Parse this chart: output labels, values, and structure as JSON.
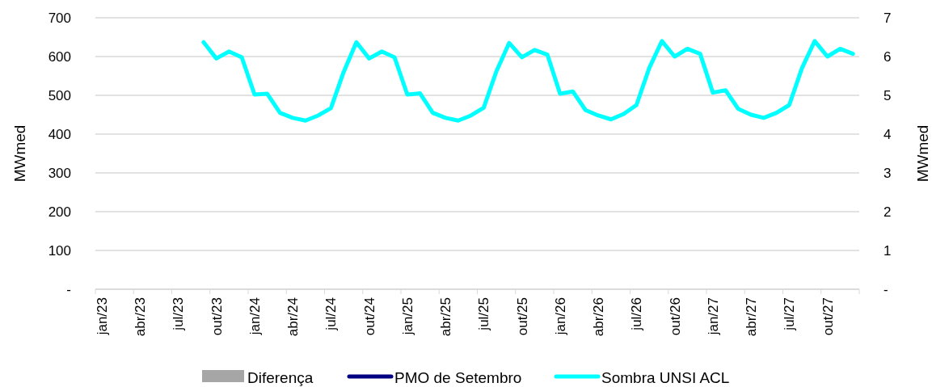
{
  "chart_data": {
    "type": "line",
    "xlabel": null,
    "ylabel": "MWmed",
    "y2label": "MWmed",
    "categories": [
      "jan/23",
      null,
      null,
      "abr/23",
      null,
      null,
      "jul/23",
      null,
      null,
      "out/23",
      null,
      null,
      "jan/24",
      null,
      null,
      "abr/24",
      null,
      null,
      "jul/24",
      null,
      null,
      "out/24",
      null,
      null,
      "jan/25",
      null,
      null,
      "abr/25",
      null,
      null,
      "jul/25",
      null,
      null,
      "out/25",
      null,
      null,
      "jan/26",
      null,
      null,
      "abr/26",
      null,
      null,
      "jul/26",
      null,
      null,
      "out/26",
      null,
      null,
      "jan/27",
      null,
      null,
      "abr/27",
      null,
      null,
      "jul/27",
      null,
      null,
      "out/27",
      null,
      null
    ],
    "ylim": [
      0,
      700
    ],
    "yticks": [
      {
        "value": 0,
        "label": "-"
      },
      100,
      200,
      300,
      400,
      500,
      600,
      700
    ],
    "y2lim": [
      0,
      7
    ],
    "y2ticks": [
      {
        "value": 0,
        "label": "-"
      },
      1,
      2,
      3,
      4,
      5,
      6,
      7
    ],
    "grid": "y",
    "legend": "bottom",
    "series": [
      {
        "name": "Diferença",
        "type": "bar",
        "color": "#a6a6a6",
        "values": [
          null,
          null,
          null,
          null,
          null,
          null,
          null,
          null,
          null,
          null,
          null,
          null,
          null,
          null,
          null,
          null,
          null,
          null,
          null,
          null,
          null,
          null,
          null,
          null,
          null,
          null,
          null,
          null,
          null,
          null,
          null,
          null,
          null,
          null,
          null,
          null,
          null,
          null,
          null,
          null,
          null,
          null,
          null,
          null,
          null,
          null,
          null,
          null,
          null,
          null,
          null,
          null,
          null,
          null,
          null,
          null,
          null,
          null,
          null,
          null
        ]
      },
      {
        "name": "PMO de Setembro",
        "color": "#000080",
        "values": [
          null,
          null,
          null,
          null,
          null,
          null,
          null,
          null,
          null,
          null,
          null,
          null,
          null,
          null,
          null,
          null,
          null,
          null,
          null,
          null,
          null,
          null,
          null,
          null,
          null,
          null,
          null,
          null,
          null,
          null,
          null,
          null,
          null,
          null,
          null,
          null,
          null,
          null,
          null,
          null,
          null,
          null,
          null,
          null,
          null,
          null,
          null,
          null,
          null,
          null,
          null,
          null,
          null,
          null,
          null,
          null,
          null,
          null,
          null,
          null
        ]
      },
      {
        "name": "Sombra UNSI ACL",
        "color": "#00ffff",
        "values": [
          null,
          null,
          null,
          null,
          null,
          null,
          null,
          null,
          637,
          595,
          613,
          598,
          502,
          504,
          455,
          442,
          435,
          448,
          467,
          560,
          637,
          595,
          613,
          598,
          502,
          505,
          455,
          442,
          435,
          448,
          468,
          562,
          635,
          598,
          617,
          605,
          504,
          510,
          462,
          448,
          438,
          452,
          475,
          570,
          640,
          600,
          620,
          607,
          507,
          513,
          465,
          450,
          442,
          455,
          475,
          570,
          640,
          600,
          620,
          607
        ]
      }
    ]
  }
}
